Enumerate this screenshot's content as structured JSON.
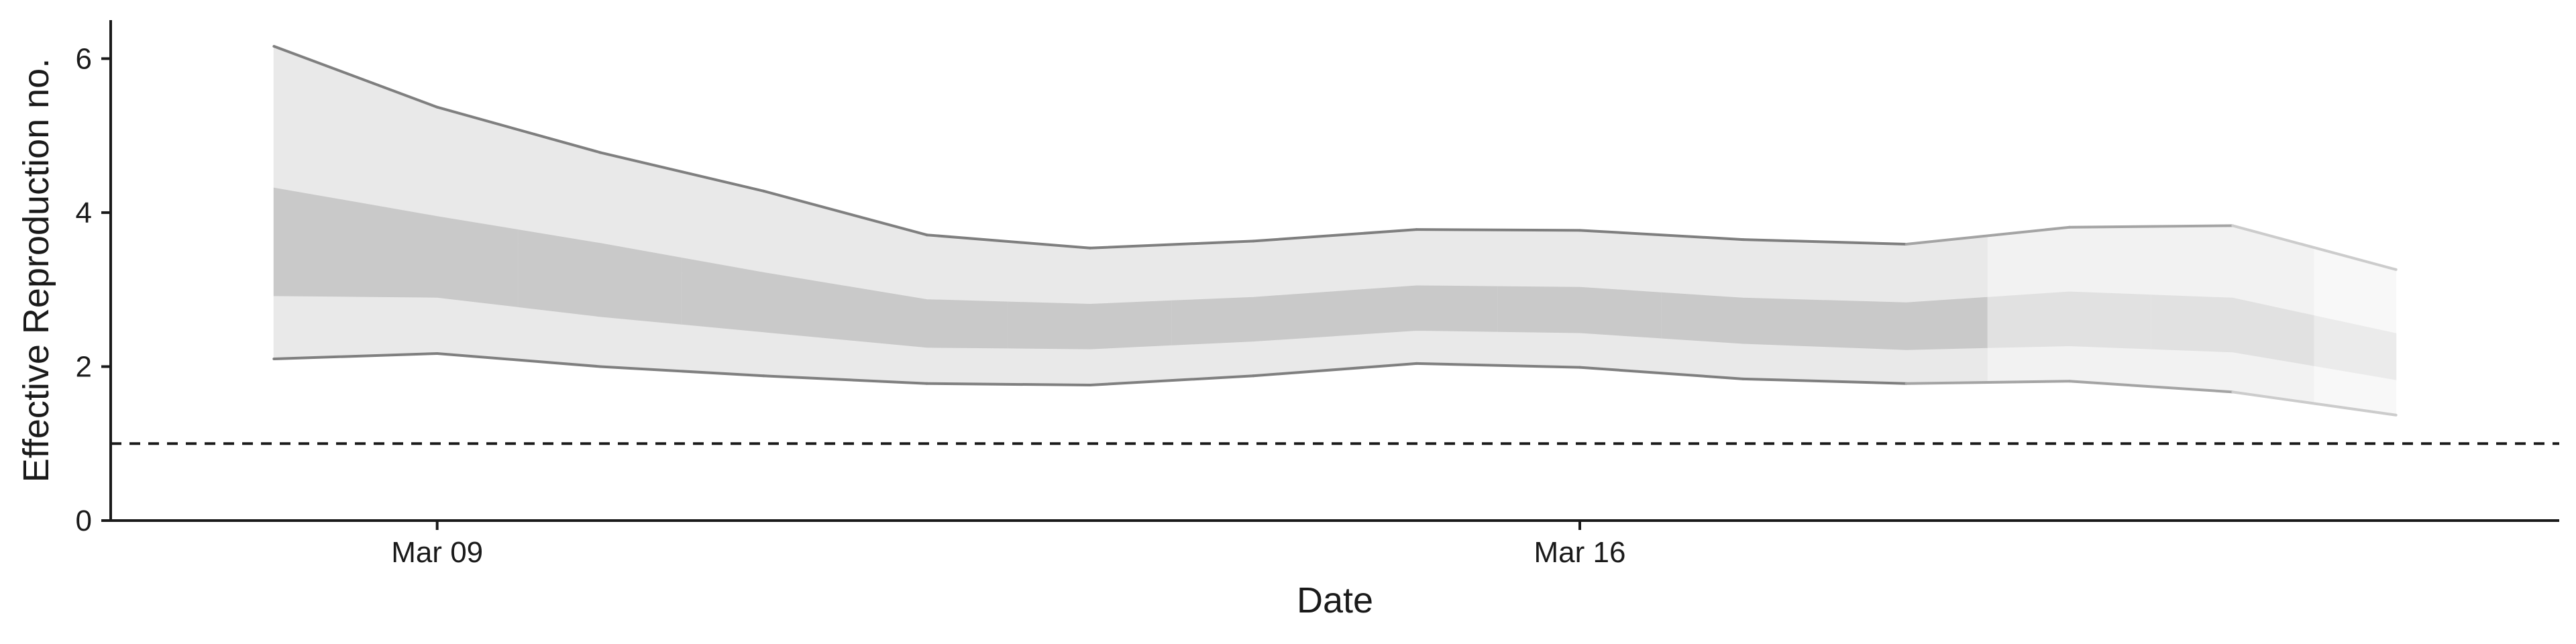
{
  "chart_data": {
    "type": "area",
    "title": "",
    "xlabel": "Date",
    "ylabel": "Effective Reproduction no.",
    "x_tick_labels": [
      "Mar 09",
      "Mar 16"
    ],
    "x_ticks": [
      "2020-03-09",
      "2020-03-16"
    ],
    "xlim": [
      "2020-03-07",
      "2020-03-22"
    ],
    "y_ticks": [
      0,
      2,
      4,
      6
    ],
    "ylim": [
      0,
      6.5
    ],
    "reference_line": {
      "y": 1,
      "style": "dashed"
    },
    "grid": false,
    "legend": "none",
    "dates": [
      "2020-03-08",
      "2020-03-09",
      "2020-03-10",
      "2020-03-11",
      "2020-03-12",
      "2020-03-13",
      "2020-03-14",
      "2020-03-15",
      "2020-03-16",
      "2020-03-17",
      "2020-03-18",
      "2020-03-19",
      "2020-03-20",
      "2020-03-21"
    ],
    "series": [
      {
        "type": "ribbon",
        "level": "90% interval",
        "lower": [
          2.1,
          2.17,
          2.0,
          1.88,
          1.78,
          1.76,
          1.88,
          2.04,
          1.99,
          1.84,
          1.78,
          1.81,
          1.67,
          1.37
        ],
        "upper": [
          6.16,
          5.37,
          4.78,
          4.28,
          3.71,
          3.54,
          3.63,
          3.78,
          3.77,
          3.65,
          3.59,
          3.81,
          3.83,
          3.26
        ]
      },
      {
        "type": "ribbon",
        "level": "50% interval",
        "lower": [
          2.92,
          2.9,
          2.65,
          2.45,
          2.25,
          2.23,
          2.33,
          2.47,
          2.44,
          2.3,
          2.22,
          2.27,
          2.19,
          1.83
        ],
        "upper": [
          4.32,
          3.95,
          3.6,
          3.22,
          2.87,
          2.81,
          2.9,
          3.05,
          3.03,
          2.89,
          2.83,
          2.97,
          2.89,
          2.43
        ]
      }
    ],
    "estimate_types": [
      "estimate",
      "estimate",
      "estimate",
      "estimate",
      "estimate",
      "estimate",
      "estimate",
      "estimate",
      "estimate",
      "estimate",
      "estimate",
      "estimate based on partial data",
      "estimate based on partial data",
      "forecast"
    ],
    "colors": {
      "estimate": {
        "outer": "#e9e9e9",
        "inner": "#c9c9c9",
        "line": "#7f7f7f"
      },
      "estimate based on partial data": {
        "outer": "#f2f2f2",
        "inner": "#e1e1e1",
        "line": "#a4a4a4"
      },
      "forecast": {
        "outer": "#f8f8f8",
        "inner": "#ebebeb",
        "line": "#cccccc"
      },
      "axis": "#1a1a1a",
      "reference_line": "#1a1a1a"
    }
  }
}
